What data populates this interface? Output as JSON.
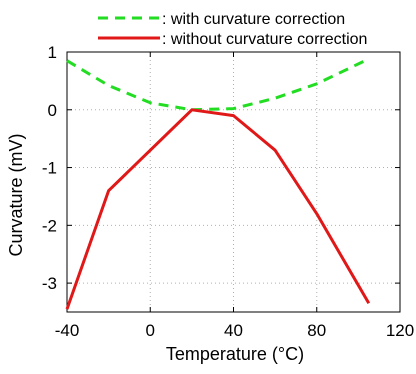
{
  "chart_data": {
    "type": "line",
    "xlabel": "Temperature (°C)",
    "ylabel": "Curvature (mV)",
    "xlim": [
      -40,
      120
    ],
    "ylim": [
      -3.5,
      1
    ],
    "xticks": [
      -40,
      0,
      40,
      80,
      120
    ],
    "xtick_labels": [
      "-40",
      "0",
      "40",
      "80",
      "120"
    ],
    "yticks": [
      -3,
      -2,
      -1,
      0,
      1
    ],
    "ytick_labels": [
      "-3",
      "-2",
      "-1",
      "0",
      "1"
    ],
    "grid": true,
    "legend_position": "top",
    "series": [
      {
        "name": ": with curvature correction",
        "color": "#22dd22",
        "line_style": "dashed",
        "x": [
          -40,
          -20,
          0,
          20,
          40,
          60,
          80,
          105
        ],
        "y": [
          0.85,
          0.42,
          0.12,
          0.0,
          0.02,
          0.2,
          0.45,
          0.88
        ]
      },
      {
        "name": ": without curvature correction",
        "color": "#e01818",
        "line_style": "solid",
        "x": [
          -40,
          -20,
          0,
          20,
          40,
          60,
          80,
          105
        ],
        "y": [
          -3.45,
          -1.4,
          -0.7,
          0.0,
          -0.1,
          -0.7,
          -1.8,
          -3.35
        ]
      }
    ]
  }
}
